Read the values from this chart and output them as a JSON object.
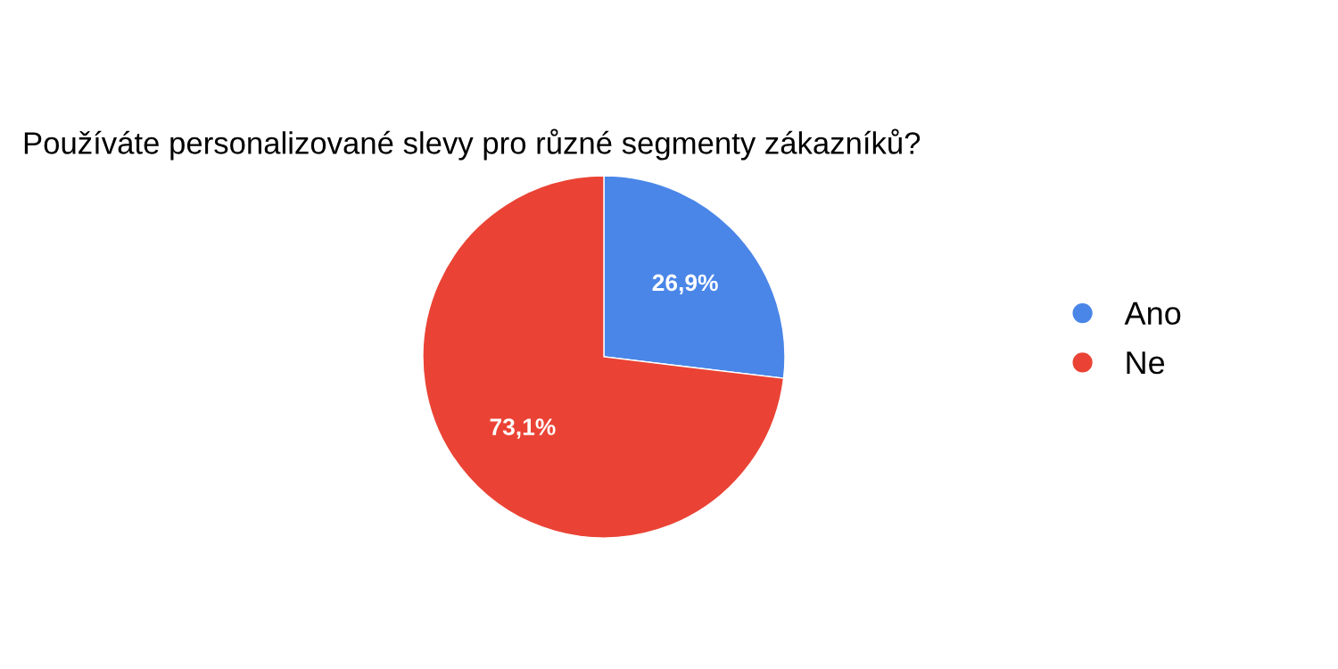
{
  "chart_data": {
    "type": "pie",
    "title": "Používáte personalizované slevy pro různé segmenty zákazníků?",
    "categories": [
      "Ano",
      "Ne"
    ],
    "values": [
      26.9,
      73.1
    ],
    "colors": [
      "#4a86e8",
      "#ea4335"
    ],
    "value_labels": [
      "26,9%",
      "73,1%"
    ],
    "legend": "right"
  }
}
